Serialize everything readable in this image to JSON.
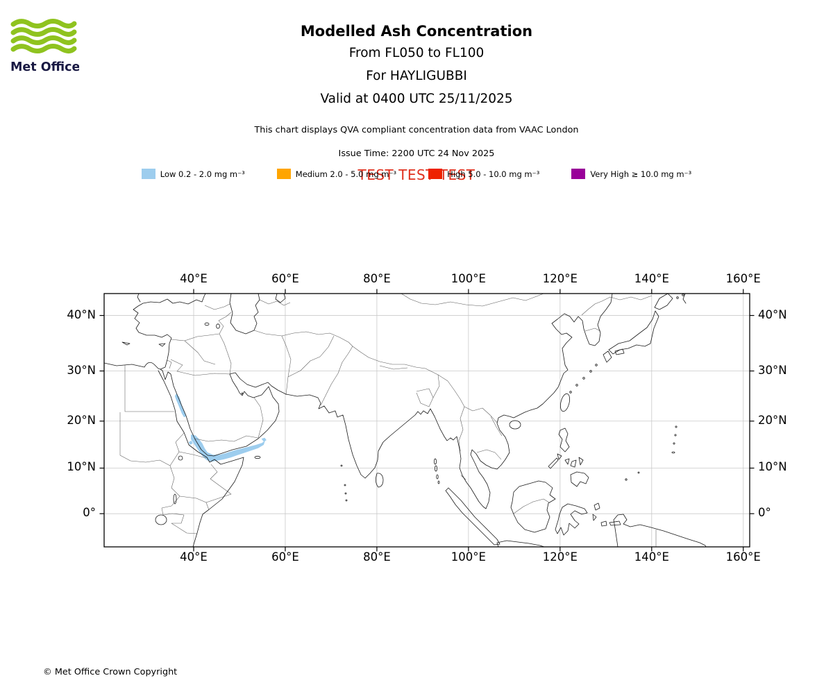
{
  "brand": {
    "green": "#8fc31f",
    "navy": "#191943"
  },
  "header": {
    "logo_text": "Met Office",
    "title": "Modelled Ash Concentration",
    "subtitle_fl": "From FL050 to FL100",
    "subtitle_for": "For HAYLIGUBBI",
    "subtitle_valid": "Valid at 0400 UTC 25/11/2025",
    "qva_note": "This chart displays QVA compliant concentration data from VAAC London",
    "issue_time": "Issue Time: 2200 UTC 24 Nov 2025",
    "test_banner": "TEST TEST TEST",
    "test_banner_color": "#e0301e"
  },
  "legend": {
    "items": [
      {
        "key": "low",
        "label": "Low 0.2 - 2.0 mg m⁻³",
        "color": "#9dcdee"
      },
      {
        "key": "medium",
        "label": "Medium 2.0 - 5.0 mg m⁻³",
        "color": "#ffa500"
      },
      {
        "key": "high",
        "label": "High 5.0 - 10.0 mg m⁻³",
        "color": "#ee2200"
      },
      {
        "key": "very-high",
        "label": "Very High ≥ 10.0 mg m⁻³",
        "color": "#990099"
      }
    ]
  },
  "map": {
    "lon_min": 20.45,
    "lon_max": 161.4,
    "lat_min": -7.3,
    "lat_max": 43.6,
    "x_ticks": [
      {
        "lon": 40,
        "label": "40°E"
      },
      {
        "lon": 60,
        "label": "60°E"
      },
      {
        "lon": 80,
        "label": "80°E"
      },
      {
        "lon": 100,
        "label": "100°E"
      },
      {
        "lon": 120,
        "label": "120°E"
      },
      {
        "lon": 140,
        "label": "140°E"
      },
      {
        "lon": 160,
        "label": "160°E"
      }
    ],
    "y_ticks": [
      {
        "lat": 40,
        "label": "40°N"
      },
      {
        "lat": 30,
        "label": "30°N"
      },
      {
        "lat": 20,
        "label": "20°N"
      },
      {
        "lat": 10,
        "label": "10°N"
      },
      {
        "lat": 0,
        "label": "0°"
      }
    ]
  },
  "ash_data": {
    "concentration_level": "Low 0.2 - 2.0 mg m⁻³",
    "polygons_lonlat": [
      [
        [
          36.2,
          25.6
        ],
        [
          36.9,
          24.8
        ],
        [
          37.2,
          24.0
        ],
        [
          37.4,
          23.2
        ],
        [
          37.8,
          22.4
        ],
        [
          38.2,
          21.6
        ],
        [
          38.4,
          21.0
        ],
        [
          37.9,
          20.8
        ],
        [
          37.4,
          21.6
        ],
        [
          37.0,
          22.5
        ],
        [
          36.6,
          23.4
        ],
        [
          36.2,
          24.3
        ],
        [
          35.9,
          25.1
        ]
      ],
      [
        [
          39.4,
          17.2
        ],
        [
          40.4,
          17.0
        ],
        [
          41.2,
          16.2
        ],
        [
          41.9,
          15.3
        ],
        [
          42.4,
          14.3
        ],
        [
          43.0,
          13.4
        ],
        [
          44.2,
          12.9
        ],
        [
          45.7,
          12.9
        ],
        [
          47.2,
          13.3
        ],
        [
          48.8,
          13.8
        ],
        [
          50.4,
          14.2
        ],
        [
          52.0,
          14.6
        ],
        [
          53.6,
          15.0
        ],
        [
          54.9,
          15.4
        ],
        [
          55.6,
          15.9
        ],
        [
          55.3,
          15.0
        ],
        [
          54.1,
          14.3
        ],
        [
          52.6,
          13.8
        ],
        [
          51.1,
          13.3
        ],
        [
          49.6,
          12.8
        ],
        [
          48.1,
          12.3
        ],
        [
          46.6,
          11.9
        ],
        [
          45.1,
          11.6
        ],
        [
          43.9,
          11.4
        ],
        [
          42.9,
          11.7
        ],
        [
          42.1,
          12.4
        ],
        [
          41.4,
          13.3
        ],
        [
          40.7,
          14.3
        ],
        [
          40.0,
          15.3
        ],
        [
          39.4,
          16.2
        ]
      ],
      [
        [
          54.8,
          16.3
        ],
        [
          55.5,
          16.5
        ],
        [
          55.9,
          16.0
        ],
        [
          55.3,
          15.7
        ]
      ],
      [
        [
          38.9,
          15.6
        ],
        [
          39.5,
          15.9
        ],
        [
          39.8,
          15.3
        ],
        [
          39.2,
          15.0
        ]
      ]
    ]
  },
  "footer": {
    "copyright": "© Met Office Crown Copyright"
  }
}
